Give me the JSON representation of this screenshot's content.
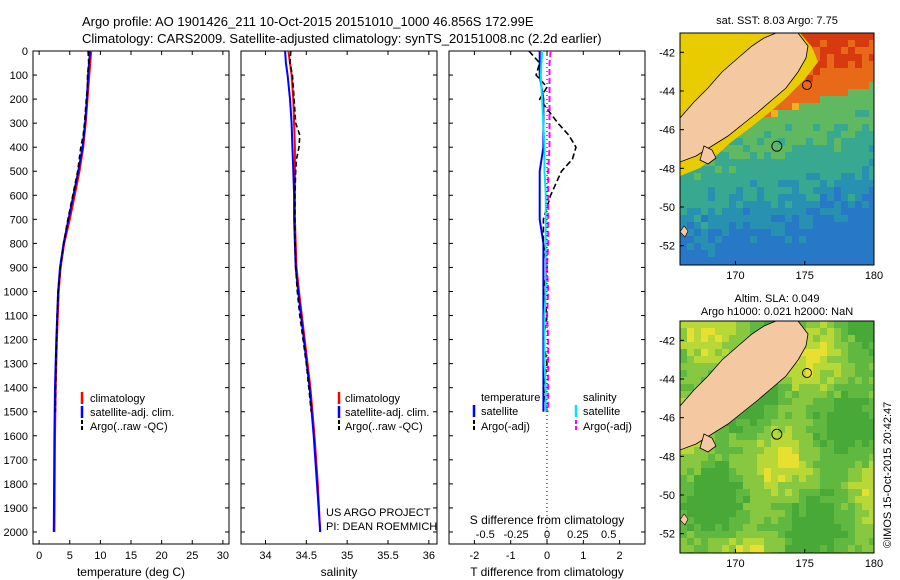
{
  "header": {
    "line1": "Argo profile: AO 1901426_211 10-Oct-2015 20151010_1000 46.856S 172.99E",
    "line2": "Climatology: CARS2009. Satellite-adjusted climatology: synTS_20151008.nc (2.2d earlier)"
  },
  "project": {
    "line1": "US ARGO PROJECT",
    "line2": "PI: DEAN ROEMMICH"
  },
  "sst_title": "sat. SST: 8.03 Argo: 7.75",
  "sla_title1": "Altim. SLA: 0.049",
  "sla_title2": "Argo h1000: 0.021 h2000: NaN",
  "credit": "©IMOS 15-Oct-2015 20:42:47",
  "depth_ticks": [
    "0",
    "100",
    "200",
    "300",
    "400",
    "500",
    "600",
    "700",
    "800",
    "900",
    "1000",
    "1100",
    "1200",
    "1300",
    "1400",
    "1500",
    "1600",
    "1700",
    "1800",
    "1900",
    "2000"
  ],
  "colors": {
    "climatology": "#ff0000",
    "satellite": "#0000ff",
    "argo": "#000000",
    "sat_sal": "#00e5ee",
    "argo_sal": "#ff00ff",
    "land": "#f4c8a0"
  },
  "chart_data": [
    {
      "type": "line",
      "title": "",
      "xlabel": "temperature (deg C)",
      "ylabel": "",
      "xlim": [
        -1,
        31
      ],
      "ylim": [
        0,
        2050
      ],
      "xticks": [
        "0",
        "5",
        "10",
        "15",
        "20",
        "25",
        "30"
      ],
      "legend": [
        "climatology",
        "satellite-adj. clim.",
        "Argo(..raw -QC)"
      ],
      "legend_position": "bottom-right",
      "series": [
        {
          "name": "climatology",
          "depth": [
            0,
            100,
            200,
            300,
            400,
            500,
            600,
            700,
            800,
            900,
            1000,
            1200,
            1400,
            1600,
            2000
          ],
          "values": [
            8.5,
            8.2,
            7.9,
            7.6,
            7.2,
            6.6,
            5.8,
            5.0,
            4.1,
            3.5,
            3.2,
            2.9,
            2.7,
            2.6,
            2.5
          ]
        },
        {
          "name": "satellite-adj. clim.",
          "depth": [
            0,
            100,
            200,
            300,
            400,
            500,
            600,
            700,
            800,
            900,
            1000,
            1200,
            1400,
            1600,
            2000
          ],
          "values": [
            8.3,
            8.0,
            7.8,
            7.5,
            7.1,
            6.4,
            5.6,
            4.8,
            4.0,
            3.4,
            3.1,
            2.8,
            2.6,
            2.5,
            2.4
          ]
        },
        {
          "name": "Argo(..raw -QC)",
          "depth": [
            0,
            50,
            100,
            150,
            200,
            300,
            350,
            400,
            500,
            600,
            700,
            800,
            900,
            1000,
            1100,
            1200,
            1300,
            1400,
            1500
          ],
          "values": [
            8.0,
            8.1,
            7.9,
            7.9,
            7.7,
            7.4,
            7.2,
            6.8,
            6.3,
            5.5,
            4.7,
            4.0,
            3.5,
            3.1,
            2.95,
            2.85,
            2.75,
            2.7,
            2.65
          ]
        }
      ]
    },
    {
      "type": "line",
      "title": "",
      "xlabel": "salinity",
      "ylabel": "",
      "xlim": [
        33.7,
        36.1
      ],
      "ylim": [
        0,
        2050
      ],
      "xticks": [
        "34",
        "34.5",
        "35",
        "35.5",
        "36"
      ],
      "legend": [
        "climatology",
        "satellite-adj. clim.",
        "Argo(..raw -QC)"
      ],
      "legend_position": "bottom-right",
      "series": [
        {
          "name": "climatology",
          "depth": [
            0,
            100,
            200,
            300,
            400,
            500,
            600,
            700,
            800,
            900,
            1000,
            1200,
            1400,
            1600,
            1800,
            2000
          ],
          "values": [
            34.28,
            34.32,
            34.34,
            34.35,
            34.36,
            34.36,
            34.36,
            34.36,
            34.37,
            34.38,
            34.41,
            34.48,
            34.55,
            34.6,
            34.64,
            34.67
          ]
        },
        {
          "name": "satellite-adj. clim.",
          "depth": [
            0,
            50,
            100,
            200,
            300,
            400,
            500,
            600,
            700,
            800,
            900,
            1000,
            1200,
            1400,
            1600,
            1800,
            2000
          ],
          "values": [
            34.24,
            34.25,
            34.27,
            34.3,
            34.32,
            34.33,
            34.34,
            34.35,
            34.35,
            34.36,
            34.37,
            34.4,
            34.47,
            34.54,
            34.59,
            34.63,
            34.67
          ]
        },
        {
          "name": "Argo(..raw -QC)",
          "depth": [
            0,
            50,
            100,
            200,
            300,
            350,
            400,
            450,
            500,
            600,
            700,
            800,
            900,
            1000,
            1100,
            1200,
            1300,
            1400,
            1500
          ],
          "values": [
            34.31,
            34.3,
            34.33,
            34.35,
            34.37,
            34.42,
            34.41,
            34.38,
            34.37,
            34.36,
            34.36,
            34.36,
            34.37,
            34.39,
            34.42,
            34.46,
            34.5,
            34.53,
            34.56
          ]
        }
      ]
    },
    {
      "type": "line",
      "title": "",
      "xlabel": "T difference from climatology",
      "xlabel2": "S difference from climatology",
      "ylabel": "",
      "xlim": [
        -2.7,
        2.7
      ],
      "ylim": [
        0,
        2050
      ],
      "xticks": [
        "-2",
        "-1",
        "0",
        "1",
        "2"
      ],
      "xticks2": [
        "-0.5",
        "-0.25",
        "0",
        "0.25",
        "0.5"
      ],
      "legend_temperature_heading": "temperature",
      "legend_salinity_heading": "salinity",
      "legend": [
        "satellite",
        "Argo(-adj)",
        "satellite",
        "Argo(-adj)"
      ],
      "legend_position": "bottom",
      "series": [
        {
          "name": "satellite (temperature)",
          "depth": [
            0,
            100,
            200,
            300,
            400,
            500,
            600,
            700,
            800,
            900,
            1000,
            1200,
            1400,
            1500
          ],
          "values": [
            -0.2,
            -0.2,
            -0.1,
            -0.1,
            -0.1,
            -0.2,
            -0.2,
            -0.2,
            -0.1,
            -0.1,
            -0.1,
            -0.1,
            -0.1,
            -0.1
          ]
        },
        {
          "name": "Argo(-adj) (temperature)",
          "depth": [
            0,
            50,
            100,
            150,
            200,
            300,
            350,
            400,
            450,
            500,
            600,
            700,
            800,
            900,
            1000,
            1100,
            1200,
            1300,
            1400,
            1500
          ],
          "values": [
            -0.5,
            -0.2,
            -0.3,
            0.0,
            -0.2,
            0.3,
            0.6,
            0.8,
            0.7,
            0.4,
            0.1,
            -0.1,
            -0.1,
            0.0,
            -0.1,
            0.0,
            -0.1,
            0.0,
            -0.1,
            0.0
          ]
        },
        {
          "name": "satellite (salinity)",
          "depth": [
            0,
            100,
            200,
            300,
            400,
            500,
            600,
            700,
            800,
            900,
            1000,
            1100,
            1200,
            1300,
            1400,
            1500
          ],
          "values": [
            -0.04,
            -0.05,
            -0.04,
            -0.03,
            -0.02,
            -0.02,
            -0.01,
            -0.01,
            -0.01,
            -0.01,
            -0.01,
            -0.02,
            -0.02,
            -0.02,
            -0.01,
            -0.01
          ]
        },
        {
          "name": "Argo(-adj) (salinity)",
          "depth": [
            0,
            50,
            100,
            200,
            300,
            400,
            500,
            600,
            700,
            800,
            900,
            1000,
            1100,
            1200,
            1300,
            1400,
            1500
          ],
          "values": [
            0.03,
            0.02,
            0.02,
            0.02,
            0.02,
            0.02,
            0.01,
            0.01,
            0.01,
            0.01,
            0.0,
            0.01,
            0.0,
            0.01,
            0.01,
            0.01,
            0.01
          ]
        }
      ]
    },
    {
      "type": "heatmap",
      "title": "sat. SST: 8.03 Argo: 7.75",
      "xlim": [
        166,
        180
      ],
      "ylim": [
        -53,
        -41
      ],
      "xticks": [
        "170",
        "175",
        "180"
      ],
      "yticks": [
        "-42",
        "-44",
        "-46",
        "-48",
        "-50",
        "-52"
      ],
      "argo_position": {
        "lon": 172.99,
        "lat": -46.856
      }
    },
    {
      "type": "heatmap",
      "title": "Altim. SLA: 0.049",
      "xlim": [
        166,
        180
      ],
      "ylim": [
        -53,
        -41
      ],
      "xticks": [
        "170",
        "175",
        "180"
      ],
      "yticks": [
        "-42",
        "-44",
        "-46",
        "-48",
        "-50",
        "-52"
      ],
      "argo_position": {
        "lon": 172.99,
        "lat": -46.856
      }
    }
  ]
}
